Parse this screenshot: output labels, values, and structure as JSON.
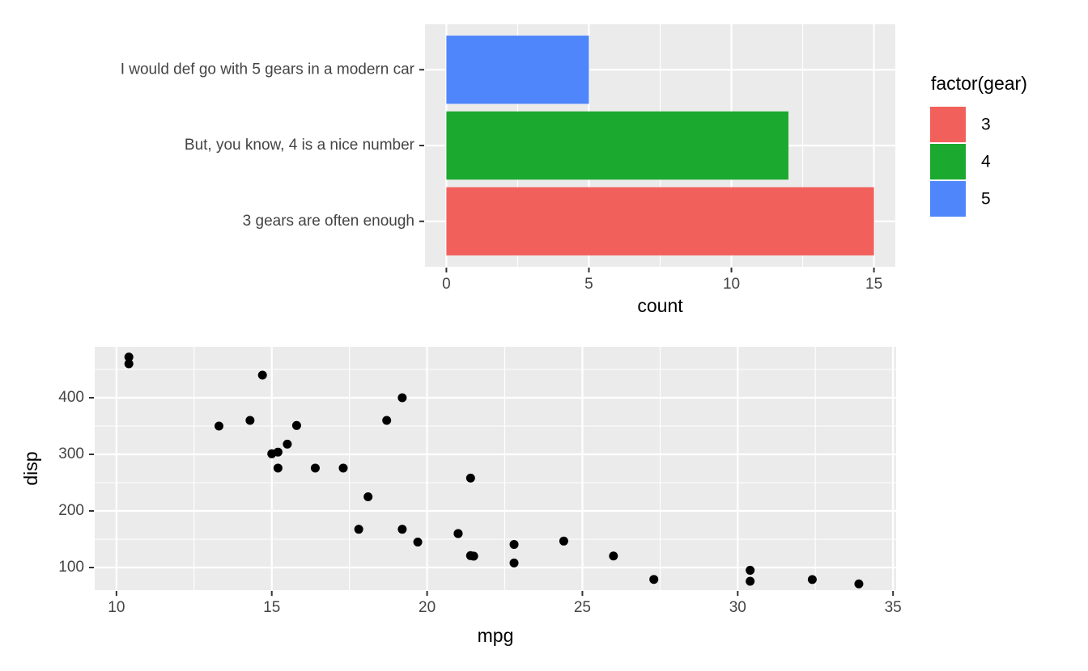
{
  "theme": {
    "panel_bg": "#EBEBEB",
    "grid_color": "#FFFFFF",
    "tick_mark_color": "#333333",
    "tick_label_color": "#444444",
    "axis_title_color": "#000000",
    "point_color": "#000000"
  },
  "chart_data": [
    {
      "type": "bar",
      "orientation": "horizontal",
      "categories": [
        "I would def go with 5 gears in a modern car",
        "But, you know, 4 is a nice number",
        "3 gears are often enough"
      ],
      "values": [
        5,
        12,
        15
      ],
      "bar_colors": [
        "#4F86FB",
        "#1CA92F",
        "#F2605C"
      ],
      "xlabel": "count",
      "x_ticks": [
        0,
        5,
        10,
        15
      ],
      "x_minor": [
        2.5,
        7.5,
        12.5
      ],
      "xlim": [
        -0.75,
        15.75
      ],
      "grid": true,
      "legend": {
        "title": "factor(gear)",
        "position": "right",
        "entries": [
          {
            "label": "3",
            "color": "#F2605C"
          },
          {
            "label": "4",
            "color": "#1CA92F"
          },
          {
            "label": "5",
            "color": "#4F86FB"
          }
        ]
      }
    },
    {
      "type": "scatter",
      "title": "",
      "xlabel": "mpg",
      "ylabel": "disp",
      "x_ticks": [
        10,
        15,
        20,
        25,
        30,
        35
      ],
      "y_ticks": [
        100,
        200,
        300,
        400
      ],
      "x_minor": [
        12.5,
        17.5,
        22.5,
        27.5,
        32.5
      ],
      "y_minor": [
        150,
        250,
        350,
        450
      ],
      "xlim": [
        9.3,
        35.1
      ],
      "ylim": [
        60,
        490
      ],
      "grid": true,
      "legend_position": "none",
      "points": [
        [
          21.0,
          160.0
        ],
        [
          21.0,
          160.0
        ],
        [
          22.8,
          108.0
        ],
        [
          21.4,
          258.0
        ],
        [
          18.7,
          360.0
        ],
        [
          18.1,
          225.0
        ],
        [
          14.3,
          360.0
        ],
        [
          24.4,
          146.7
        ],
        [
          22.8,
          140.8
        ],
        [
          19.2,
          167.6
        ],
        [
          17.8,
          167.6
        ],
        [
          16.4,
          275.8
        ],
        [
          17.3,
          275.8
        ],
        [
          15.2,
          275.8
        ],
        [
          10.4,
          472.0
        ],
        [
          10.4,
          460.0
        ],
        [
          14.7,
          440.0
        ],
        [
          32.4,
          78.7
        ],
        [
          30.4,
          75.7
        ],
        [
          33.9,
          71.1
        ],
        [
          21.5,
          120.1
        ],
        [
          15.5,
          318.0
        ],
        [
          15.2,
          304.0
        ],
        [
          13.3,
          350.0
        ],
        [
          19.2,
          400.0
        ],
        [
          27.3,
          79.0
        ],
        [
          26.0,
          120.3
        ],
        [
          30.4,
          95.1
        ],
        [
          15.8,
          351.0
        ],
        [
          19.7,
          145.0
        ],
        [
          15.0,
          301.0
        ],
        [
          21.4,
          121.0
        ]
      ]
    }
  ]
}
